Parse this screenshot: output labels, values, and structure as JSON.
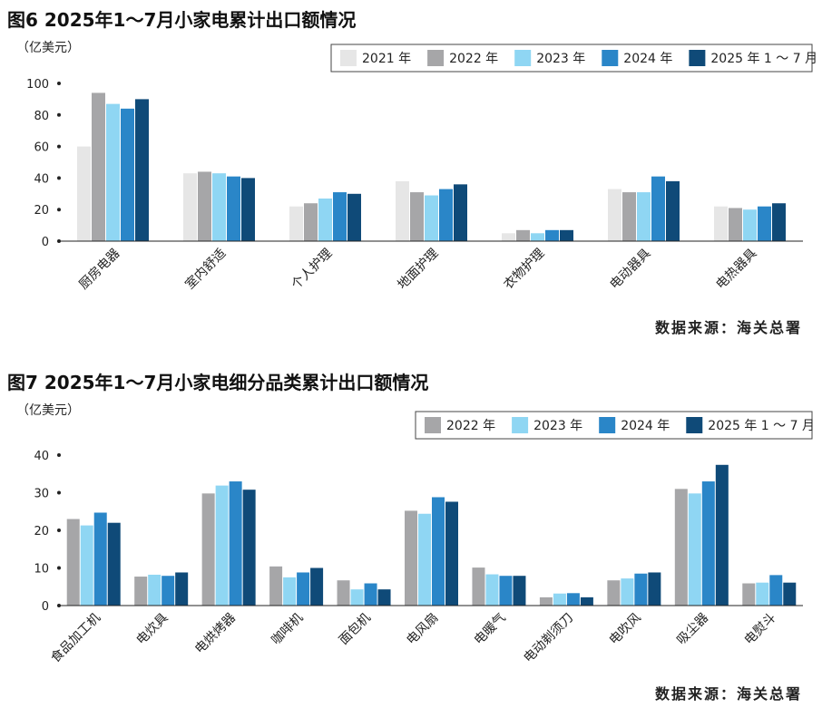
{
  "chart_data": [
    {
      "type": "bar",
      "title": "图6  2025年1～7月小家电累计出口额情况",
      "unit_label": "（亿美元）",
      "source": "数据来源：海关总署",
      "categories": [
        "厨房电器",
        "室内舒适",
        "个人护理",
        "地面护理",
        "衣物护理",
        "电动器具",
        "电热器具"
      ],
      "series": [
        {
          "name": "2021 年",
          "color": "#e6e6e6",
          "values": [
            60,
            43,
            22,
            38,
            5,
            33,
            22
          ]
        },
        {
          "name": "2022 年",
          "color": "#a6a6a8",
          "values": [
            94,
            44,
            24,
            31,
            7,
            31,
            21
          ]
        },
        {
          "name": "2023 年",
          "color": "#8fd6f3",
          "values": [
            87,
            43,
            27,
            29,
            5,
            31,
            20
          ]
        },
        {
          "name": "2024 年",
          "color": "#2a86c8",
          "values": [
            84,
            41,
            31,
            33,
            7,
            41,
            22
          ]
        },
        {
          "name": "2025 年 1 ～ 7 月",
          "color": "#0f4a78",
          "values": [
            90,
            40,
            30,
            36,
            7,
            38,
            24
          ]
        }
      ],
      "yticks": [
        0,
        20,
        40,
        60,
        80,
        100
      ],
      "ylim": [
        0,
        100
      ],
      "legend_position": "top-right",
      "grid": false
    },
    {
      "type": "bar",
      "title": "图7  2025年1～7月小家电细分品类累计出口额情况",
      "unit_label": "（亿美元）",
      "source": "数据来源：海关总署",
      "categories": [
        "食品加工机",
        "电炊具",
        "电烘烤器",
        "咖啡机",
        "面包机",
        "电风扇",
        "电暖气",
        "电动剃须刀",
        "电吹风",
        "吸尘器",
        "电熨斗"
      ],
      "series": [
        {
          "name": "2022 年",
          "color": "#a6a6a8",
          "values": [
            23,
            7.7,
            29.8,
            10.4,
            6.7,
            25.2,
            10.1,
            2.2,
            6.7,
            31,
            5.9
          ]
        },
        {
          "name": "2023 年",
          "color": "#8fd6f3",
          "values": [
            21.3,
            8.2,
            31.9,
            7.5,
            4.3,
            24.4,
            8.3,
            3.2,
            7.2,
            29.8,
            6.1
          ]
        },
        {
          "name": "2024 年",
          "color": "#2a86c8",
          "values": [
            24.7,
            7.9,
            33,
            8.8,
            5.9,
            28.8,
            7.9,
            3.3,
            8.5,
            33,
            8.1
          ]
        },
        {
          "name": "2025 年 1 ～ 7 月",
          "color": "#0f4a78",
          "values": [
            22,
            8.8,
            30.8,
            10,
            4.3,
            27.6,
            7.9,
            2.2,
            8.8,
            37.4,
            6.1
          ]
        }
      ],
      "yticks": [
        0,
        10,
        20,
        30,
        40
      ],
      "ylim": [
        0,
        40
      ],
      "legend_position": "top-right",
      "grid": false
    }
  ]
}
